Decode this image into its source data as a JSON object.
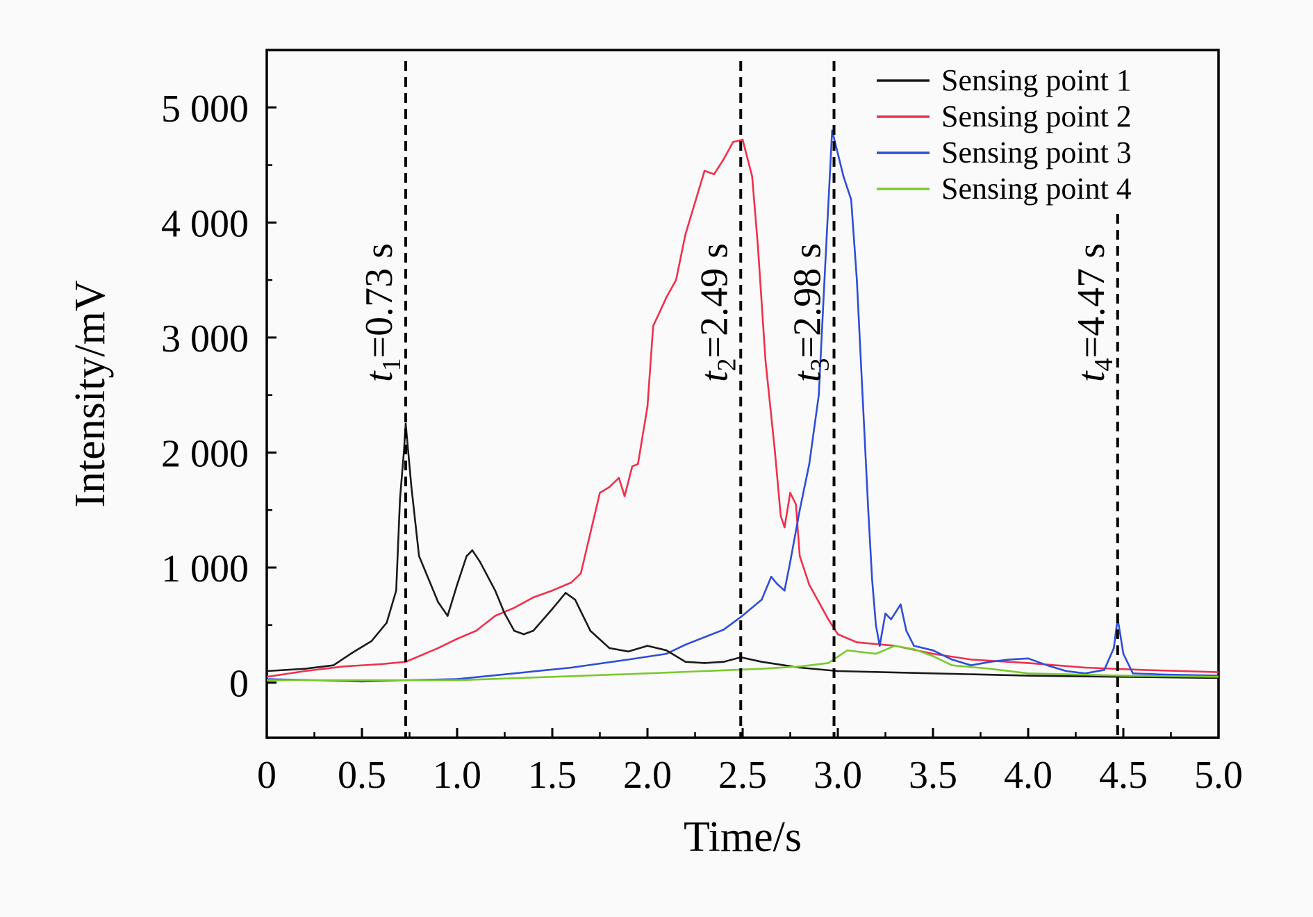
{
  "chart_data": {
    "type": "line",
    "xlabel": "Time/s",
    "ylabel": "Intensity/mV",
    "xlim": [
      0,
      5.0
    ],
    "ylim": [
      -480,
      5500
    ],
    "xticks": [
      0,
      0.5,
      1.0,
      1.5,
      2.0,
      2.5,
      3.0,
      3.5,
      4.0,
      4.5,
      5.0
    ],
    "xtick_labels": [
      "0",
      "0.5",
      "1.0",
      "1.5",
      "2.0",
      "2.5",
      "3.0",
      "3.5",
      "4.0",
      "4.5",
      "5.0"
    ],
    "yticks": [
      0,
      1000,
      2000,
      3000,
      4000,
      5000
    ],
    "ytick_labels": [
      "0",
      "1 000",
      "2 000",
      "3 000",
      "4 000",
      "5 000"
    ],
    "grid": false,
    "legend_position": "top-right",
    "series": [
      {
        "name": "Sensing point 1",
        "color": "#1a1a1a",
        "points": [
          [
            0,
            100
          ],
          [
            0.2,
            120
          ],
          [
            0.35,
            150
          ],
          [
            0.45,
            260
          ],
          [
            0.55,
            360
          ],
          [
            0.63,
            520
          ],
          [
            0.68,
            800
          ],
          [
            0.7,
            1600
          ],
          [
            0.72,
            2000
          ],
          [
            0.73,
            2250
          ],
          [
            0.76,
            1700
          ],
          [
            0.8,
            1100
          ],
          [
            0.85,
            900
          ],
          [
            0.9,
            700
          ],
          [
            0.95,
            580
          ],
          [
            1.0,
            850
          ],
          [
            1.05,
            1100
          ],
          [
            1.08,
            1150
          ],
          [
            1.12,
            1050
          ],
          [
            1.2,
            800
          ],
          [
            1.25,
            600
          ],
          [
            1.3,
            450
          ],
          [
            1.35,
            420
          ],
          [
            1.4,
            450
          ],
          [
            1.5,
            640
          ],
          [
            1.57,
            780
          ],
          [
            1.62,
            720
          ],
          [
            1.7,
            450
          ],
          [
            1.8,
            300
          ],
          [
            1.9,
            270
          ],
          [
            2.0,
            320
          ],
          [
            2.1,
            280
          ],
          [
            2.2,
            180
          ],
          [
            2.3,
            170
          ],
          [
            2.4,
            180
          ],
          [
            2.49,
            220
          ],
          [
            2.6,
            180
          ],
          [
            2.8,
            130
          ],
          [
            3.0,
            100
          ],
          [
            3.5,
            80
          ],
          [
            4.0,
            60
          ],
          [
            4.5,
            50
          ],
          [
            5.0,
            40
          ]
        ]
      },
      {
        "name": "Sensing point 2",
        "color": "#f0304c",
        "points": [
          [
            0,
            50
          ],
          [
            0.2,
            100
          ],
          [
            0.4,
            140
          ],
          [
            0.6,
            160
          ],
          [
            0.73,
            180
          ],
          [
            0.9,
            300
          ],
          [
            1.0,
            380
          ],
          [
            1.1,
            450
          ],
          [
            1.2,
            580
          ],
          [
            1.3,
            650
          ],
          [
            1.4,
            740
          ],
          [
            1.5,
            800
          ],
          [
            1.6,
            870
          ],
          [
            1.65,
            950
          ],
          [
            1.7,
            1300
          ],
          [
            1.75,
            1650
          ],
          [
            1.8,
            1700
          ],
          [
            1.85,
            1780
          ],
          [
            1.88,
            1620
          ],
          [
            1.92,
            1880
          ],
          [
            1.95,
            1900
          ],
          [
            2.0,
            2400
          ],
          [
            2.03,
            3100
          ],
          [
            2.1,
            3350
          ],
          [
            2.15,
            3500
          ],
          [
            2.2,
            3900
          ],
          [
            2.3,
            4450
          ],
          [
            2.35,
            4420
          ],
          [
            2.4,
            4550
          ],
          [
            2.45,
            4700
          ],
          [
            2.5,
            4720
          ],
          [
            2.55,
            4400
          ],
          [
            2.58,
            3800
          ],
          [
            2.62,
            2800
          ],
          [
            2.67,
            2000
          ],
          [
            2.7,
            1450
          ],
          [
            2.72,
            1350
          ],
          [
            2.75,
            1650
          ],
          [
            2.78,
            1550
          ],
          [
            2.8,
            1100
          ],
          [
            2.85,
            850
          ],
          [
            2.9,
            700
          ],
          [
            2.95,
            550
          ],
          [
            3.0,
            420
          ],
          [
            3.1,
            350
          ],
          [
            3.3,
            320
          ],
          [
            3.5,
            250
          ],
          [
            3.7,
            200
          ],
          [
            4.0,
            170
          ],
          [
            4.3,
            130
          ],
          [
            4.6,
            110
          ],
          [
            5.0,
            90
          ]
        ]
      },
      {
        "name": "Sensing point 3",
        "color": "#2f4dd8",
        "points": [
          [
            0,
            30
          ],
          [
            0.5,
            10
          ],
          [
            0.73,
            20
          ],
          [
            1.0,
            30
          ],
          [
            1.3,
            80
          ],
          [
            1.6,
            130
          ],
          [
            1.9,
            200
          ],
          [
            2.1,
            250
          ],
          [
            2.2,
            330
          ],
          [
            2.4,
            460
          ],
          [
            2.49,
            570
          ],
          [
            2.6,
            720
          ],
          [
            2.65,
            920
          ],
          [
            2.68,
            860
          ],
          [
            2.72,
            800
          ],
          [
            2.75,
            1050
          ],
          [
            2.8,
            1500
          ],
          [
            2.85,
            1900
          ],
          [
            2.9,
            2500
          ],
          [
            2.93,
            3500
          ],
          [
            2.97,
            4800
          ],
          [
            3.0,
            4600
          ],
          [
            3.03,
            4400
          ],
          [
            3.07,
            4200
          ],
          [
            3.1,
            3500
          ],
          [
            3.13,
            2500
          ],
          [
            3.16,
            1500
          ],
          [
            3.18,
            900
          ],
          [
            3.2,
            500
          ],
          [
            3.22,
            320
          ],
          [
            3.25,
            600
          ],
          [
            3.28,
            550
          ],
          [
            3.33,
            680
          ],
          [
            3.36,
            450
          ],
          [
            3.4,
            320
          ],
          [
            3.5,
            280
          ],
          [
            3.6,
            200
          ],
          [
            3.7,
            150
          ],
          [
            3.8,
            180
          ],
          [
            3.9,
            200
          ],
          [
            4.0,
            210
          ],
          [
            4.1,
            150
          ],
          [
            4.2,
            100
          ],
          [
            4.3,
            80
          ],
          [
            4.4,
            110
          ],
          [
            4.45,
            300
          ],
          [
            4.47,
            560
          ],
          [
            4.5,
            250
          ],
          [
            4.55,
            80
          ],
          [
            4.7,
            70
          ],
          [
            5.0,
            60
          ]
        ]
      },
      {
        "name": "Sensing point 4",
        "color": "#7ac92c",
        "points": [
          [
            0,
            20
          ],
          [
            0.5,
            20
          ],
          [
            1.0,
            20
          ],
          [
            1.5,
            50
          ],
          [
            2.0,
            80
          ],
          [
            2.3,
            100
          ],
          [
            2.6,
            120
          ],
          [
            2.8,
            140
          ],
          [
            2.95,
            170
          ],
          [
            3.05,
            280
          ],
          [
            3.15,
            260
          ],
          [
            3.2,
            250
          ],
          [
            3.3,
            320
          ],
          [
            3.4,
            290
          ],
          [
            3.5,
            230
          ],
          [
            3.6,
            150
          ],
          [
            3.8,
            120
          ],
          [
            4.0,
            80
          ],
          [
            4.5,
            60
          ],
          [
            5.0,
            50
          ]
        ]
      }
    ],
    "markers": [
      {
        "x": 0.73,
        "sub": "1",
        "label": "=0.73 s"
      },
      {
        "x": 2.49,
        "sub": "2",
        "label": "=2.49 s"
      },
      {
        "x": 2.98,
        "sub": "3",
        "label": "=2.98 s"
      },
      {
        "x": 4.47,
        "sub": "4",
        "label": "=4.47 s"
      }
    ],
    "marker_var": "t"
  }
}
